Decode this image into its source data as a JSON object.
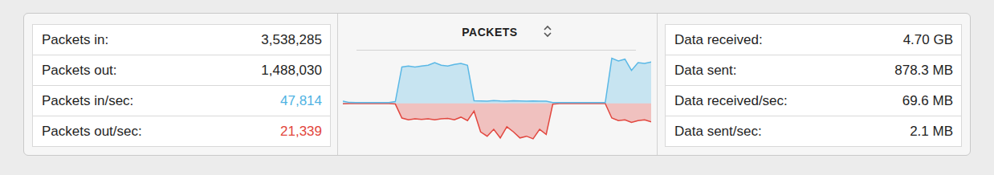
{
  "left_stats": {
    "rows": [
      {
        "label": "Packets in:",
        "value": "3,538,285"
      },
      {
        "label": "Packets out:",
        "value": "1,488,030"
      },
      {
        "label": "Packets in/sec:",
        "value": "47,814",
        "color": "#4fb3e3"
      },
      {
        "label": "Packets out/sec:",
        "value": "21,339",
        "color": "#e2453c"
      }
    ]
  },
  "chart_data": {
    "type": "area",
    "title": "PACKETS",
    "categories": [
      null,
      null,
      null,
      null,
      null,
      null,
      null,
      null,
      null,
      null,
      null,
      null,
      null,
      null,
      null,
      null,
      null,
      null,
      null,
      null,
      null,
      null,
      null,
      null,
      null,
      null,
      null,
      null,
      null,
      null,
      null,
      null,
      null,
      null,
      null,
      null,
      null,
      null,
      null,
      null,
      null,
      null,
      null,
      null,
      null,
      null,
      null,
      null
    ],
    "series": [
      {
        "color": "#5ab8e6",
        "values": [
          2500,
          1000,
          800,
          800,
          800,
          800,
          800,
          900,
          2000,
          42000,
          43000,
          42000,
          43000,
          44000,
          47000,
          44000,
          43000,
          45000,
          46000,
          44000,
          3000,
          2800,
          2600,
          3200,
          2800,
          2600,
          3000,
          2800,
          2600,
          2700,
          2600,
          2400,
          900,
          800,
          800,
          800,
          800,
          800,
          800,
          800,
          800,
          52000,
          49000,
          51000,
          38000,
          47000,
          46000,
          47814
        ]
      },
      {
        "color": "#e2473f",
        "values": [
          -500,
          -300,
          -300,
          -300,
          -300,
          -300,
          -300,
          -300,
          -800,
          -17000,
          -19000,
          -18000,
          -18500,
          -18000,
          -19000,
          -18000,
          -17500,
          -19000,
          -16000,
          -20000,
          -9000,
          -33000,
          -38000,
          -30000,
          -40000,
          -27000,
          -33000,
          -40000,
          -38000,
          -41000,
          -30000,
          -36000,
          -1000,
          -300,
          -300,
          -300,
          -300,
          -300,
          -300,
          -300,
          -300,
          -17000,
          -20000,
          -19000,
          -22000,
          -20000,
          -19000,
          -21339
        ]
      }
    ],
    "ylim": [
      -55000,
      60000
    ],
    "grid": false,
    "tick_labels": false
  },
  "right_stats": {
    "rows": [
      {
        "label": "Data received:",
        "value": "4.70 GB"
      },
      {
        "label": "Data sent:",
        "value": "878.3 MB"
      },
      {
        "label": "Data received/sec:",
        "value": "69.6 MB"
      },
      {
        "label": "Data sent/sec:",
        "value": "2.1 MB"
      }
    ]
  }
}
